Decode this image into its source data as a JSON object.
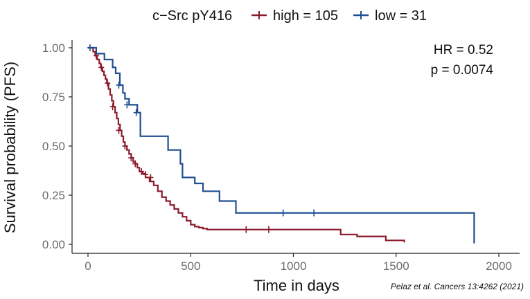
{
  "chart_data": {
    "type": "line",
    "step": true,
    "legend": {
      "title": "c−Src pY416",
      "position": "top"
    },
    "xlabel": "Time in days",
    "ylabel": "Survival probability (PFS)",
    "xlim": [
      0,
      2000
    ],
    "ylim": [
      0,
      1
    ],
    "xticks": [
      "0",
      "500",
      "1000",
      "1500",
      "2000"
    ],
    "xtick_values": [
      0,
      500,
      1000,
      1500,
      2000
    ],
    "yticks": [
      "0.00",
      "0.25",
      "0.50",
      "0.75",
      "1.00"
    ],
    "ytick_values": [
      0,
      0.25,
      0.5,
      0.75,
      1.0
    ],
    "grid": false,
    "annotations": {
      "hr": "HR = 0.52",
      "p": "p = 0.0074"
    },
    "citation": "Pelaz et al. Cancers 13:4262 (2021)",
    "series": [
      {
        "name": "high = 105",
        "color": "#8b1a2b",
        "x": [
          0,
          25,
          35,
          45,
          55,
          62,
          70,
          78,
          85,
          92,
          100,
          108,
          116,
          124,
          132,
          140,
          148,
          156,
          164,
          172,
          180,
          190,
          200,
          210,
          220,
          230,
          240,
          250,
          265,
          280,
          300,
          320,
          340,
          360,
          380,
          400,
          420,
          440,
          460,
          480,
          500,
          520,
          540,
          560,
          580,
          1230,
          1310,
          1450,
          1540
        ],
        "y": [
          1.0,
          0.98,
          0.96,
          0.94,
          0.92,
          0.9,
          0.88,
          0.86,
          0.84,
          0.82,
          0.79,
          0.76,
          0.73,
          0.7,
          0.67,
          0.64,
          0.61,
          0.58,
          0.55,
          0.52,
          0.5,
          0.48,
          0.46,
          0.44,
          0.42,
          0.41,
          0.39,
          0.37,
          0.36,
          0.34,
          0.32,
          0.3,
          0.27,
          0.24,
          0.22,
          0.2,
          0.18,
          0.16,
          0.14,
          0.12,
          0.1,
          0.09,
          0.085,
          0.08,
          0.075,
          0.05,
          0.04,
          0.02,
          0.01
        ],
        "censor_x": [
          40,
          65,
          95,
          120,
          150,
          180,
          210,
          230,
          260,
          280,
          305,
          770,
          880
        ],
        "censor_y": [
          0.96,
          0.9,
          0.82,
          0.7,
          0.58,
          0.5,
          0.44,
          0.41,
          0.37,
          0.355,
          0.34,
          0.075,
          0.075
        ]
      },
      {
        "name": "low = 31",
        "color": "#1f4e91",
        "x": [
          0,
          40,
          80,
          120,
          135,
          155,
          170,
          180,
          200,
          240,
          255,
          370,
          390,
          450,
          460,
          520,
          560,
          640,
          720,
          1880,
          1880
        ],
        "y": [
          1.0,
          0.97,
          0.94,
          0.9,
          0.87,
          0.81,
          0.77,
          0.74,
          0.71,
          0.67,
          0.55,
          0.55,
          0.48,
          0.41,
          0.34,
          0.31,
          0.27,
          0.22,
          0.16,
          0.16,
          0.005
        ],
        "censor_x": [
          10,
          150,
          190,
          235,
          950,
          1100
        ],
        "censor_y": [
          1.0,
          0.81,
          0.71,
          0.67,
          0.16,
          0.16
        ]
      }
    ]
  }
}
